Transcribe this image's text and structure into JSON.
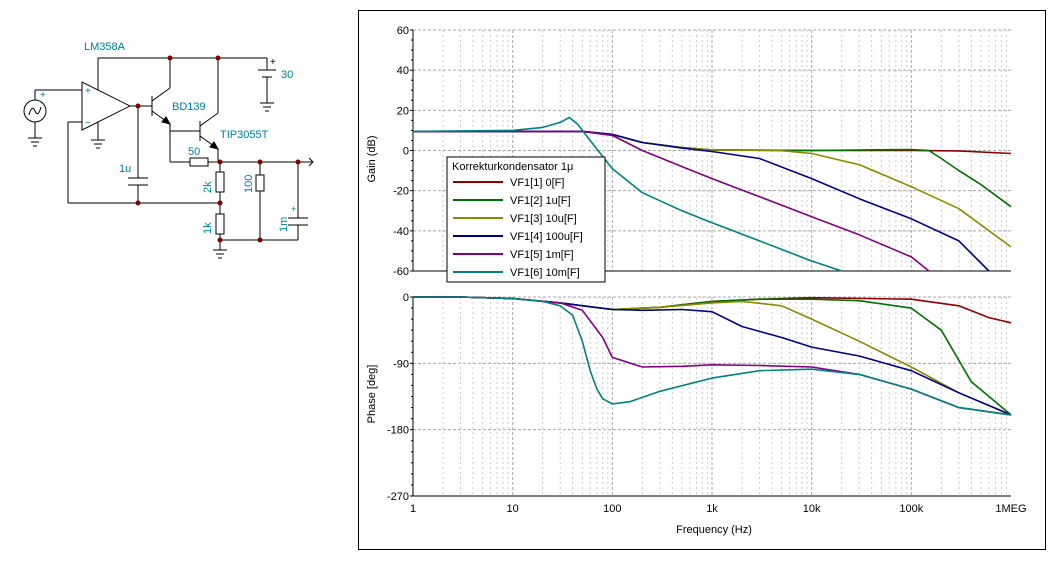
{
  "schematic": {
    "opamp": "LM358A",
    "transistor1": "BD139",
    "transistor2": "TIP3055T",
    "supply": "30",
    "supply_plus": "+",
    "cap_comp": "1u",
    "r_series": "50",
    "r_upper": "2k",
    "r_lower": "1k",
    "r_load": "100",
    "c_load": "1m",
    "c_load_plus": "+",
    "opamp_plus": "+",
    "opamp_minus": "−",
    "source_plus": "+"
  },
  "legend": {
    "title": "Korrekturkondensator 1μ",
    "items": [
      "VF1[1]  0[F]",
      "VF1[2]  1u[F]",
      "VF1[3]  10u[F]",
      "VF1[4]  100u[F]",
      "VF1[5]  1m[F]",
      "VF1[6]  10m[F]"
    ]
  },
  "colors": [
    "#8b0000",
    "#007000",
    "#8a8a00",
    "#000080",
    "#800080",
    "#008080"
  ],
  "chart_data": [
    {
      "type": "line",
      "xscale": "log",
      "xlim": [
        1,
        1000000
      ],
      "ylim": [
        -60,
        60
      ],
      "ylabel": "Gain (dB)",
      "xlabel": "",
      "yticks": [
        "60",
        "40",
        "20",
        "0",
        "-20",
        "-40",
        "-60"
      ],
      "series": [
        {
          "name": "VF1[1]  0[F]",
          "x": [
            1,
            10,
            50,
            100,
            200,
            500,
            1000,
            10000,
            100000,
            300000,
            1000000
          ],
          "y": [
            9.5,
            9.5,
            9.5,
            8,
            4,
            1.5,
            0.3,
            0,
            0,
            -0.2,
            -1.5
          ]
        },
        {
          "name": "VF1[2]  1u[F]",
          "x": [
            1,
            10,
            50,
            100,
            200,
            500,
            1000,
            10000,
            100000,
            150000,
            200000,
            300000,
            500000,
            1000000
          ],
          "y": [
            9.5,
            9.5,
            9.5,
            8,
            4,
            1.5,
            0.3,
            0,
            0.5,
            0,
            -4,
            -10,
            -17,
            -28
          ]
        },
        {
          "name": "VF1[3]  10u[F]",
          "x": [
            1,
            10,
            50,
            100,
            200,
            500,
            1000,
            5000,
            10000,
            30000,
            100000,
            300000,
            1000000
          ],
          "y": [
            9.5,
            9.5,
            9.5,
            8,
            4,
            1.5,
            0.3,
            -0.1,
            -1.5,
            -7,
            -18,
            -29,
            -48
          ]
        },
        {
          "name": "VF1[4]  100u[F]",
          "x": [
            1,
            10,
            50,
            100,
            200,
            500,
            1000,
            3000,
            10000,
            30000,
            100000,
            300000,
            600000
          ],
          "y": [
            9.5,
            9.5,
            9.5,
            8,
            4,
            1.2,
            -0.5,
            -4,
            -14,
            -24,
            -34,
            -45,
            -60
          ]
        },
        {
          "name": "VF1[5]  1m[F]",
          "x": [
            1,
            10,
            50,
            100,
            200,
            500,
            1000,
            3000,
            10000,
            30000,
            100000,
            150000
          ],
          "y": [
            9.5,
            9.5,
            9.5,
            7.5,
            0,
            -8,
            -14,
            -23,
            -33,
            -42,
            -53,
            -60
          ]
        },
        {
          "name": "VF1[6]  10m[F]",
          "x": [
            1,
            10,
            20,
            30,
            37,
            45,
            60,
            80,
            100,
            200,
            500,
            1000,
            3000,
            10000,
            20000
          ],
          "y": [
            9.5,
            10,
            11.5,
            14,
            16.5,
            13,
            5,
            -3,
            -9,
            -21,
            -30,
            -36,
            -45,
            -55,
            -60
          ]
        }
      ]
    },
    {
      "type": "line",
      "xscale": "log",
      "xlim": [
        1,
        1000000
      ],
      "ylim": [
        -270,
        0
      ],
      "ylabel": "Phase [deg]",
      "xlabel": "Frequency (Hz)",
      "yticks": [
        "0",
        "-90",
        "-180",
        "-270"
      ],
      "xticks": [
        "1",
        "10",
        "100",
        "1k",
        "10k",
        "100k",
        "1MEG"
      ],
      "series": [
        {
          "name": "VF1[1]  0[F]",
          "x": [
            1,
            3,
            10,
            30,
            100,
            300,
            1000,
            3000,
            10000,
            100000,
            300000,
            600000,
            1000000
          ],
          "y": [
            0,
            0,
            -2,
            -8,
            -17,
            -14,
            -6,
            -3,
            -1,
            -3,
            -12,
            -28,
            -35
          ]
        },
        {
          "name": "VF1[2]  1u[F]",
          "x": [
            1,
            3,
            10,
            30,
            100,
            300,
            1000,
            3000,
            10000,
            30000,
            100000,
            200000,
            400000,
            1000000
          ],
          "y": [
            0,
            0,
            -2,
            -8,
            -17,
            -14,
            -6,
            -3,
            -3,
            -5,
            -15,
            -45,
            -115,
            -160
          ]
        },
        {
          "name": "VF1[3]  10u[F]",
          "x": [
            1,
            3,
            10,
            30,
            100,
            300,
            1000,
            2000,
            5000,
            10000,
            30000,
            100000,
            300000,
            1000000
          ],
          "y": [
            0,
            0,
            -2,
            -8,
            -17,
            -14,
            -8,
            -6,
            -12,
            -30,
            -60,
            -95,
            -130,
            -160
          ]
        },
        {
          "name": "VF1[4]  100u[F]",
          "x": [
            1,
            3,
            10,
            30,
            100,
            200,
            500,
            1000,
            2000,
            5000,
            10000,
            30000,
            100000,
            300000,
            1000000
          ],
          "y": [
            0,
            0,
            -2,
            -8,
            -17,
            -18,
            -17,
            -20,
            -40,
            -55,
            -68,
            -80,
            -100,
            -130,
            -160
          ]
        },
        {
          "name": "VF1[5]  1m[F]",
          "x": [
            1,
            3,
            10,
            30,
            50,
            80,
            100,
            200,
            500,
            1000,
            3000,
            10000,
            30000,
            100000,
            300000,
            1000000
          ],
          "y": [
            0,
            0,
            -2,
            -8,
            -18,
            -55,
            -82,
            -95,
            -94,
            -92,
            -93,
            -95,
            -105,
            -125,
            -150,
            -160
          ]
        },
        {
          "name": "VF1[6]  10m[F]",
          "x": [
            1,
            3,
            10,
            20,
            30,
            40,
            50,
            60,
            70,
            80,
            100,
            150,
            300,
            1000,
            3000,
            10000,
            30000,
            100000,
            300000,
            1000000
          ],
          "y": [
            0,
            0,
            -2,
            -6,
            -12,
            -25,
            -60,
            -100,
            -125,
            -138,
            -145,
            -142,
            -128,
            -110,
            -100,
            -98,
            -105,
            -125,
            -150,
            -160
          ]
        }
      ]
    }
  ]
}
